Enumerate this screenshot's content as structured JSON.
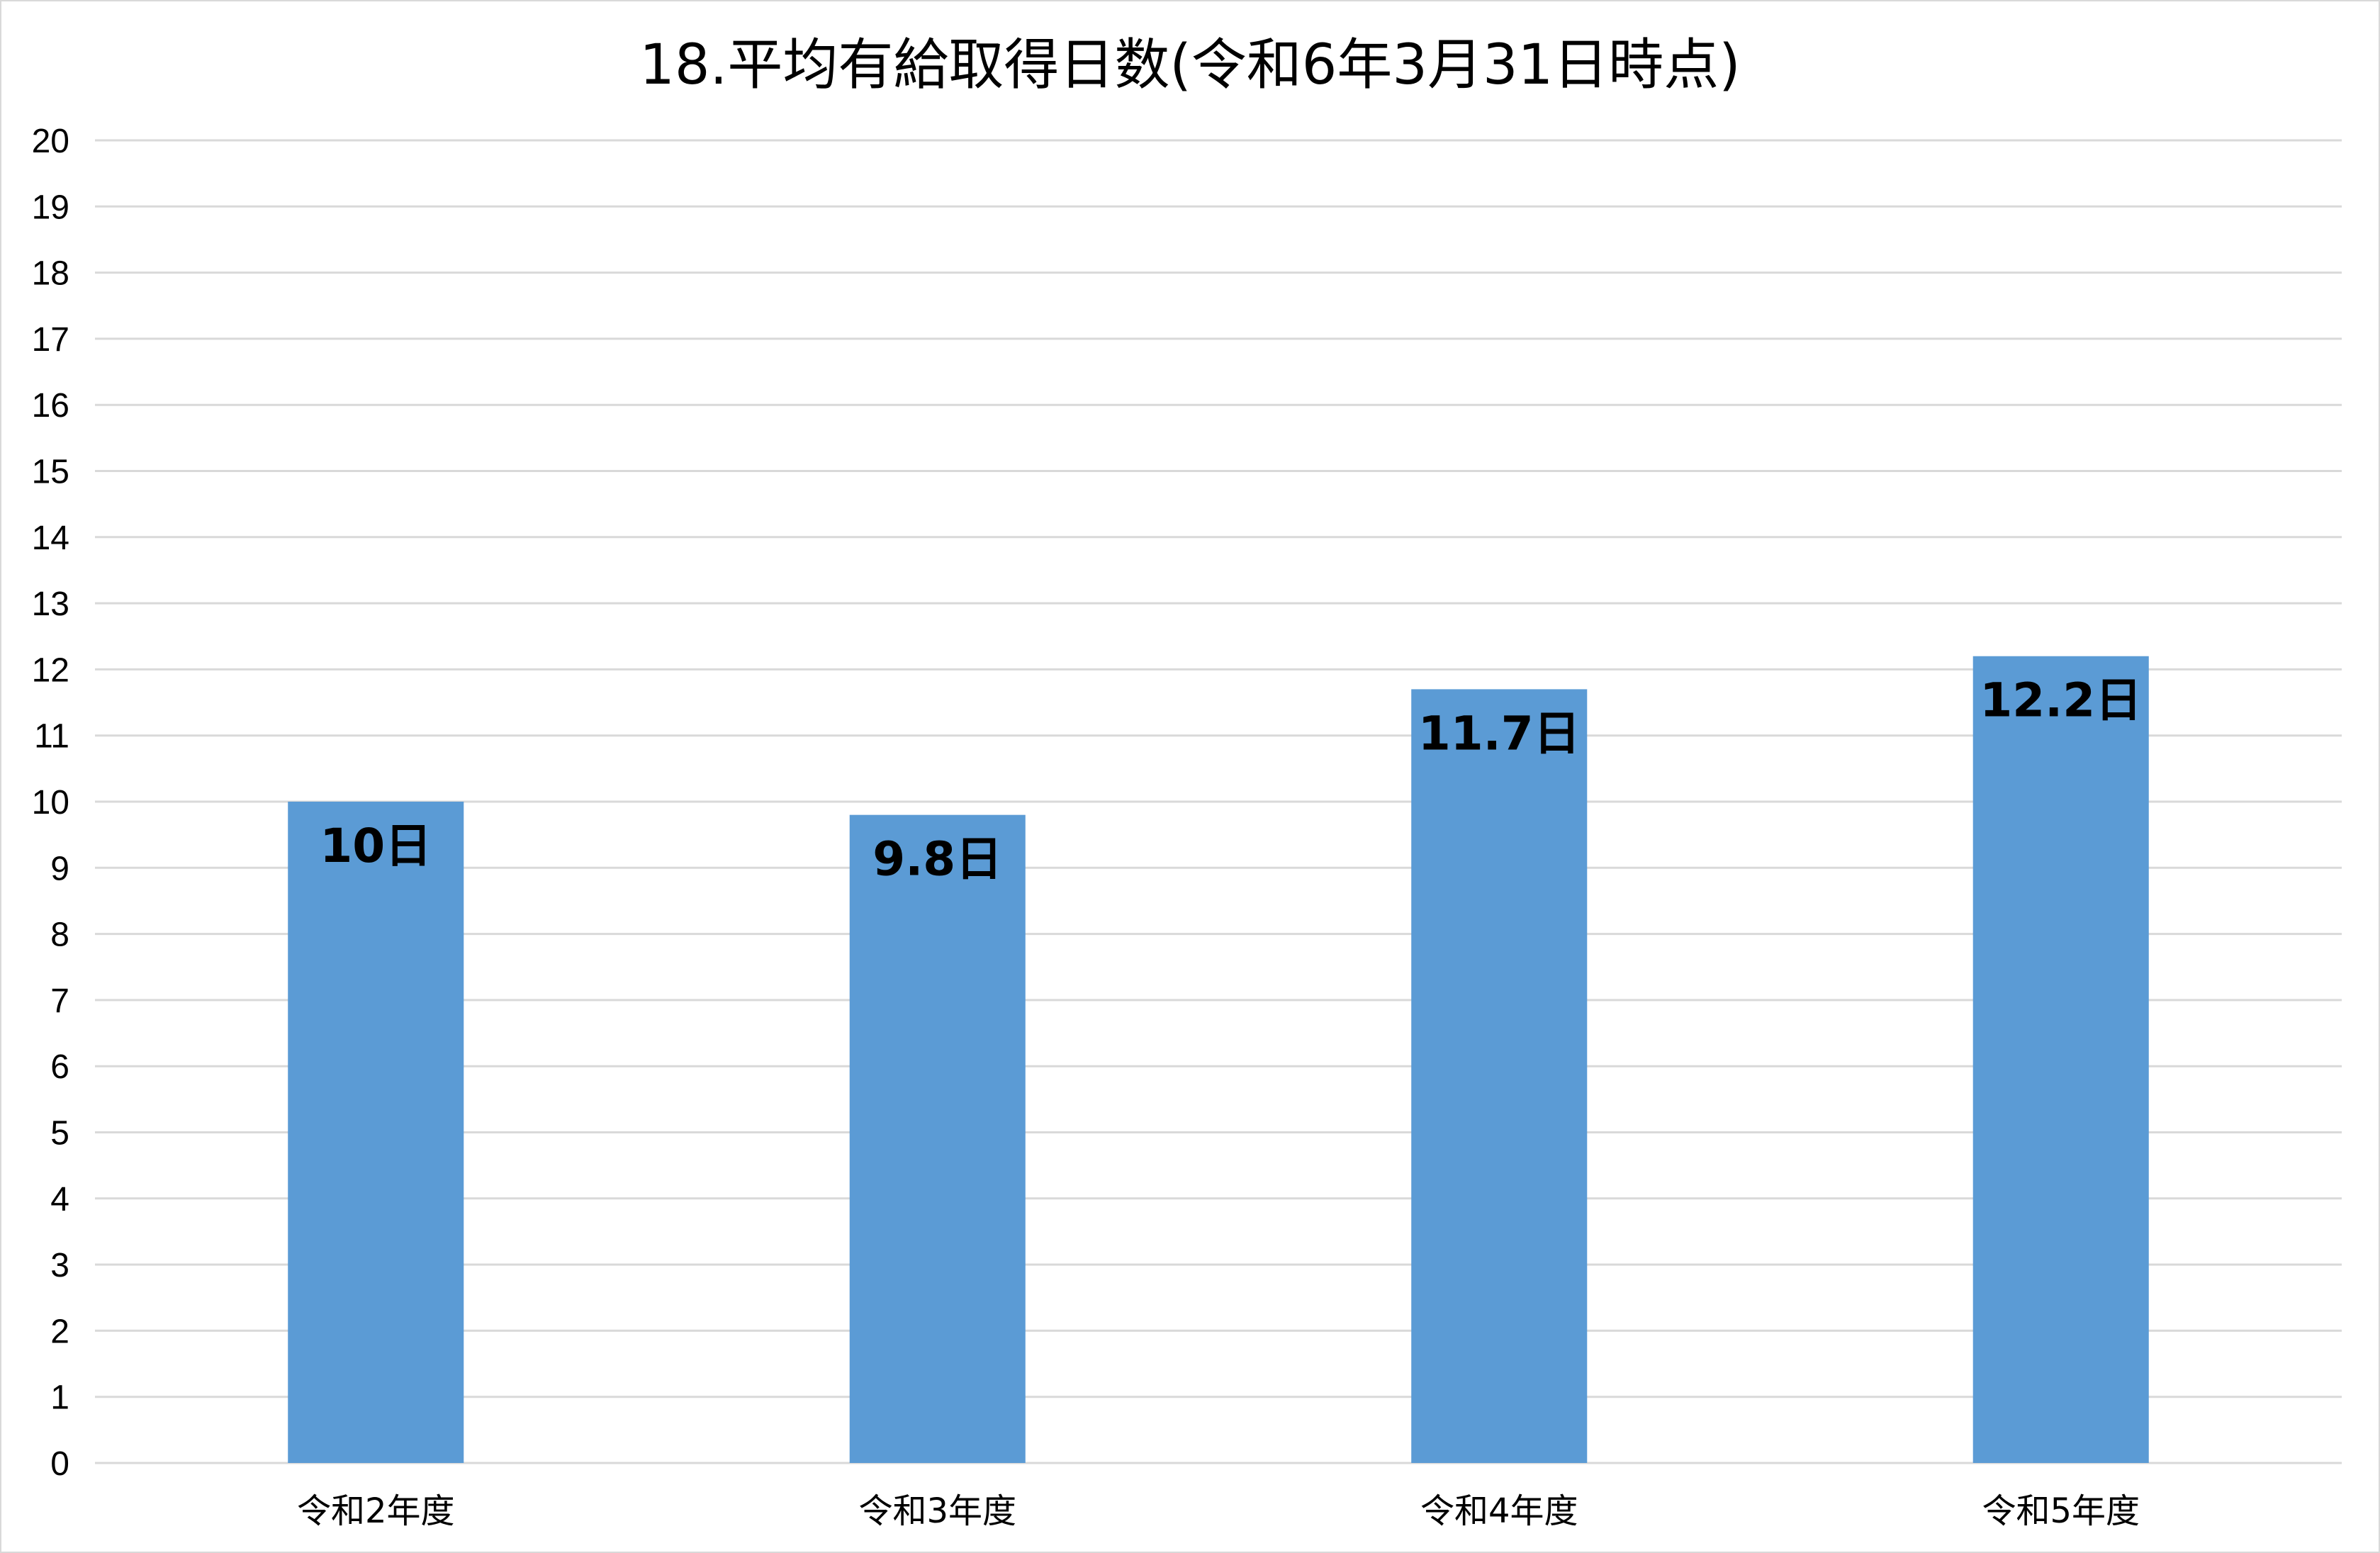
{
  "chart_data": {
    "type": "bar",
    "title": "18.平均有給取得日数(令和6年3月31日時点)",
    "categories": [
      "令和2年度",
      "令和3年度",
      "令和4年度",
      "令和5年度"
    ],
    "series": [
      {
        "values": [
          10,
          9.8,
          11.7,
          12.2
        ],
        "color": "#5b9bd5",
        "data_labels": [
          "10日",
          "9.8日",
          "11.7日",
          "12.2日"
        ]
      }
    ],
    "xlabel": "",
    "ylabel": "",
    "ylim": [
      0,
      20
    ],
    "y_ticks": [
      "0",
      "1",
      "2",
      "3",
      "4",
      "5",
      "6",
      "7",
      "8",
      "9",
      "10",
      "11",
      "12",
      "13",
      "14",
      "15",
      "16",
      "17",
      "18",
      "19",
      "20"
    ],
    "grid": true,
    "legend": "none"
  }
}
